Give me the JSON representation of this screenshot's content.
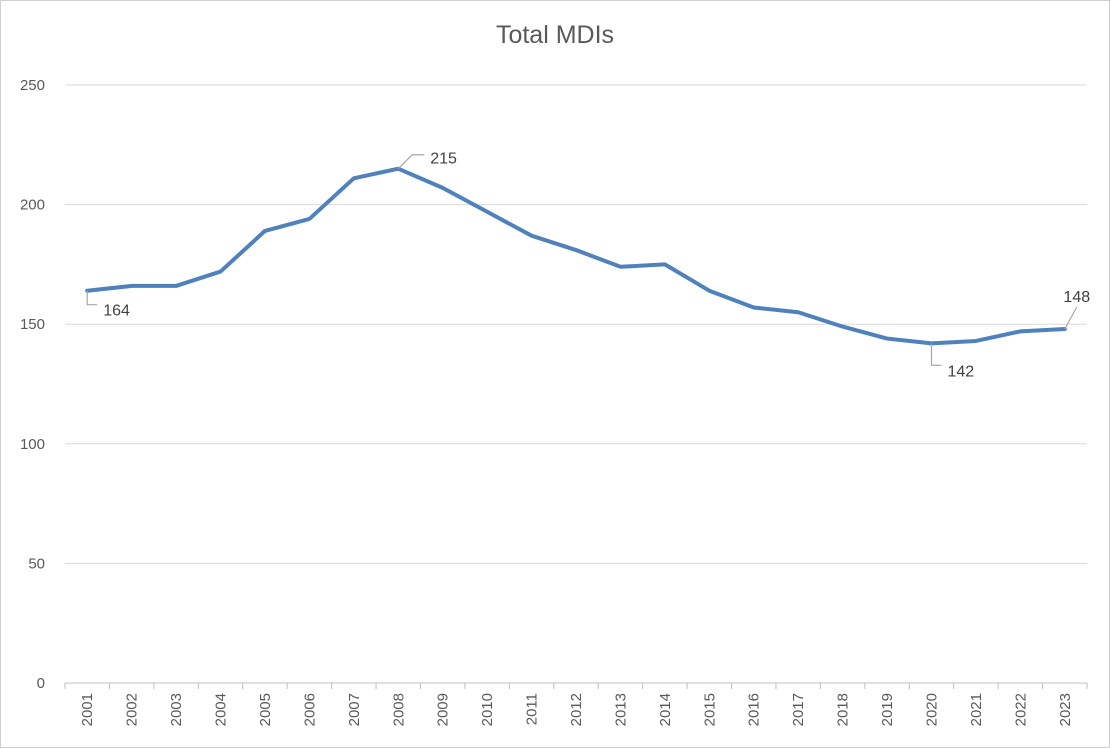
{
  "chart_data": {
    "type": "line",
    "title": "Total MDIs",
    "xlabel": "",
    "ylabel": "",
    "ylim": [
      0,
      250
    ],
    "yticks": [
      "0",
      "50",
      "100",
      "150",
      "200",
      "250"
    ],
    "grid": true,
    "legend": "none",
    "categories": [
      "2001",
      "2002",
      "2003",
      "2004",
      "2005",
      "2006",
      "2007",
      "2008",
      "2009",
      "2010",
      "2011",
      "2012",
      "2013",
      "2014",
      "2015",
      "2016",
      "2017",
      "2018",
      "2019",
      "2020",
      "2021",
      "2022",
      "2023"
    ],
    "series": [
      {
        "color": "#4F81BD",
        "values": [
          164,
          166,
          166,
          172,
          189,
          194,
          211,
          215,
          207,
          197,
          187,
          181,
          174,
          175,
          164,
          157,
          155,
          149,
          144,
          142,
          143,
          147,
          148
        ]
      }
    ],
    "data_labels": [
      {
        "category": "2001",
        "text": "164"
      },
      {
        "category": "2008",
        "text": "215"
      },
      {
        "category": "2020",
        "text": "142"
      },
      {
        "category": "2023",
        "text": "148"
      }
    ]
  }
}
